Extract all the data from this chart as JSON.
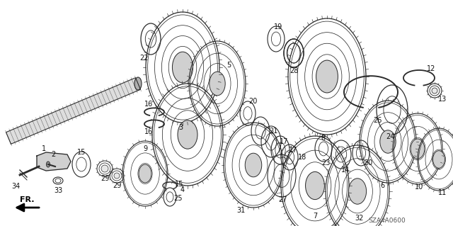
{
  "background_color": "#ffffff",
  "diagram_color": "#2a2a2a",
  "part_number_color": "#111111",
  "watermark": "SZA4A0600",
  "arrow_label": "FR."
}
